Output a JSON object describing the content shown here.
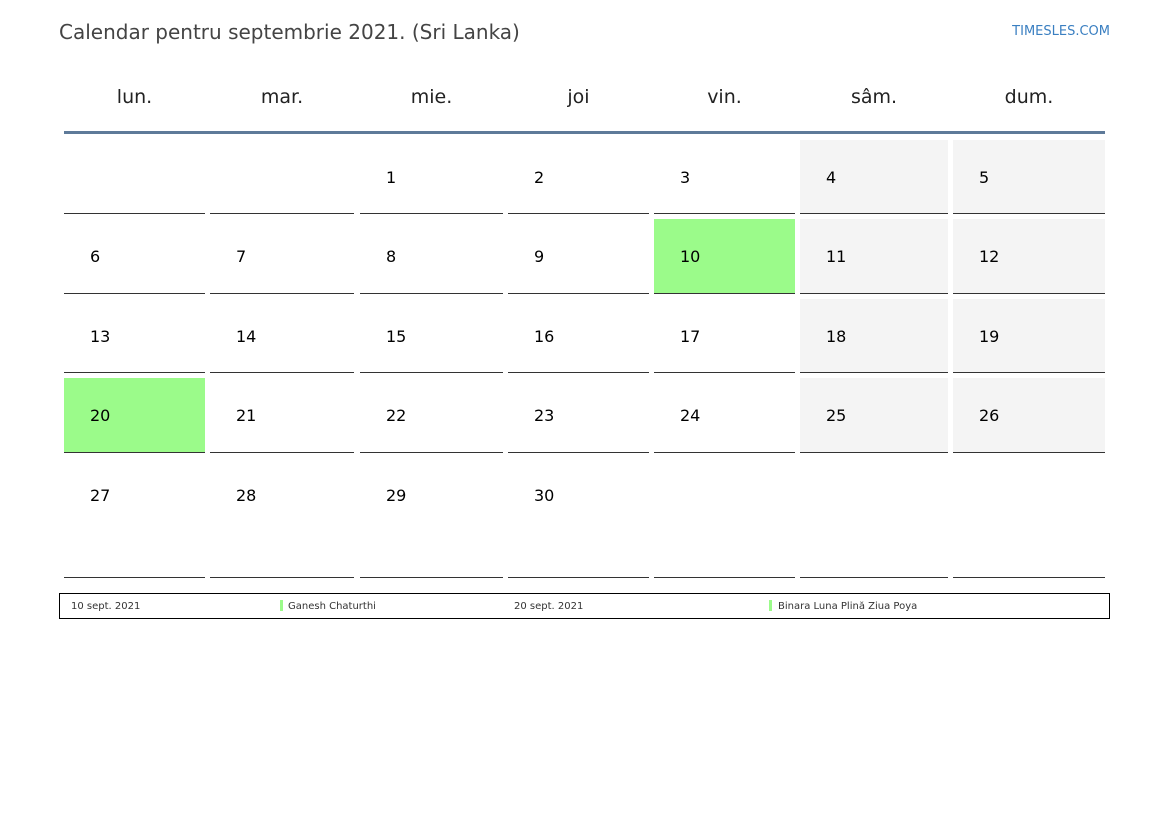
{
  "title": "Calendar pentru septembrie 2021. (Sri Lanka)",
  "brand": "TIMESLES.COM",
  "colors": {
    "holiday": "#9bfb8a",
    "weekend": "#f4f4f4",
    "header_rule": "#5e7a99",
    "brand": "#3a7fc1"
  },
  "weekdays": [
    "lun.",
    "mar.",
    "mie.",
    "joi",
    "vin.",
    "sâm.",
    "dum."
  ],
  "weeks": [
    [
      "",
      "",
      "1",
      "2",
      "3",
      "4",
      "5"
    ],
    [
      "6",
      "7",
      "8",
      "9",
      "10",
      "11",
      "12"
    ],
    [
      "13",
      "14",
      "15",
      "16",
      "17",
      "18",
      "19"
    ],
    [
      "20",
      "21",
      "22",
      "23",
      "24",
      "25",
      "26"
    ],
    [
      "27",
      "28",
      "29",
      "30",
      "",
      "",
      ""
    ]
  ],
  "holiday_days": [
    "10",
    "20"
  ],
  "legend": [
    {
      "date": "10 sept. 2021",
      "name": "Ganesh Chaturthi"
    },
    {
      "date": "20 sept. 2021",
      "name": "Binara Luna Plină Ziua Poya"
    }
  ]
}
